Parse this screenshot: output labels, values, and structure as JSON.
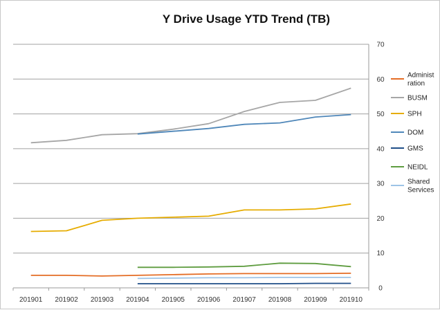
{
  "chart_data": {
    "type": "line",
    "title": "Y Drive Usage YTD Trend (TB)",
    "xlabel": "",
    "ylabel": "",
    "categories": [
      "201901",
      "201902",
      "201903",
      "201904",
      "201905",
      "201906",
      "201907",
      "201908",
      "201909",
      "201910"
    ],
    "ylim": [
      0,
      70
    ],
    "yticks": [
      0,
      10,
      20,
      30,
      40,
      50,
      60,
      70
    ],
    "grid": true,
    "y_axis_side": "right",
    "legend_position": "right",
    "series": [
      {
        "name": "Administration",
        "legend_lines": [
          "Administ",
          "ration"
        ],
        "color": "#e46c24",
        "values": [
          3.6,
          3.6,
          3.4,
          3.6,
          3.8,
          4.0,
          4.1,
          4.1,
          4.1,
          4.2
        ]
      },
      {
        "name": "BUSM",
        "legend_lines": [
          "BUSM"
        ],
        "color": "#a6a6a6",
        "values": [
          41.7,
          42.4,
          44.0,
          44.3,
          45.6,
          47.2,
          50.7,
          53.3,
          53.9,
          57.4
        ]
      },
      {
        "name": "SPH",
        "legend_lines": [
          "SPH"
        ],
        "color": "#e6ac00",
        "values": [
          16.2,
          16.4,
          19.4,
          20.0,
          20.3,
          20.6,
          22.4,
          22.4,
          22.7,
          24.1
        ]
      },
      {
        "name": "DOM",
        "legend_lines": [
          "DOM"
        ],
        "color": "#4f87b9",
        "values": [
          null,
          null,
          null,
          44.2,
          45.0,
          45.8,
          47.0,
          47.4,
          49.1,
          49.8
        ]
      },
      {
        "name": "GMS",
        "legend_lines": [
          "GMS"
        ],
        "color": "#1f4e88",
        "values": [
          null,
          null,
          null,
          1.2,
          1.2,
          1.2,
          1.2,
          1.2,
          1.3,
          1.3
        ]
      },
      {
        "name": "NEIDL",
        "legend_lines": [
          "NEIDL"
        ],
        "color": "#5e9c3f",
        "values": [
          null,
          null,
          null,
          5.9,
          5.9,
          6.0,
          6.2,
          7.1,
          7.0,
          6.1
        ]
      },
      {
        "name": "Shared Services",
        "legend_lines": [
          "Shared",
          "Services"
        ],
        "color": "#9dc3e6",
        "values": [
          null,
          null,
          null,
          2.7,
          2.8,
          2.9,
          2.9,
          3.0,
          3.0,
          3.0
        ]
      }
    ]
  }
}
